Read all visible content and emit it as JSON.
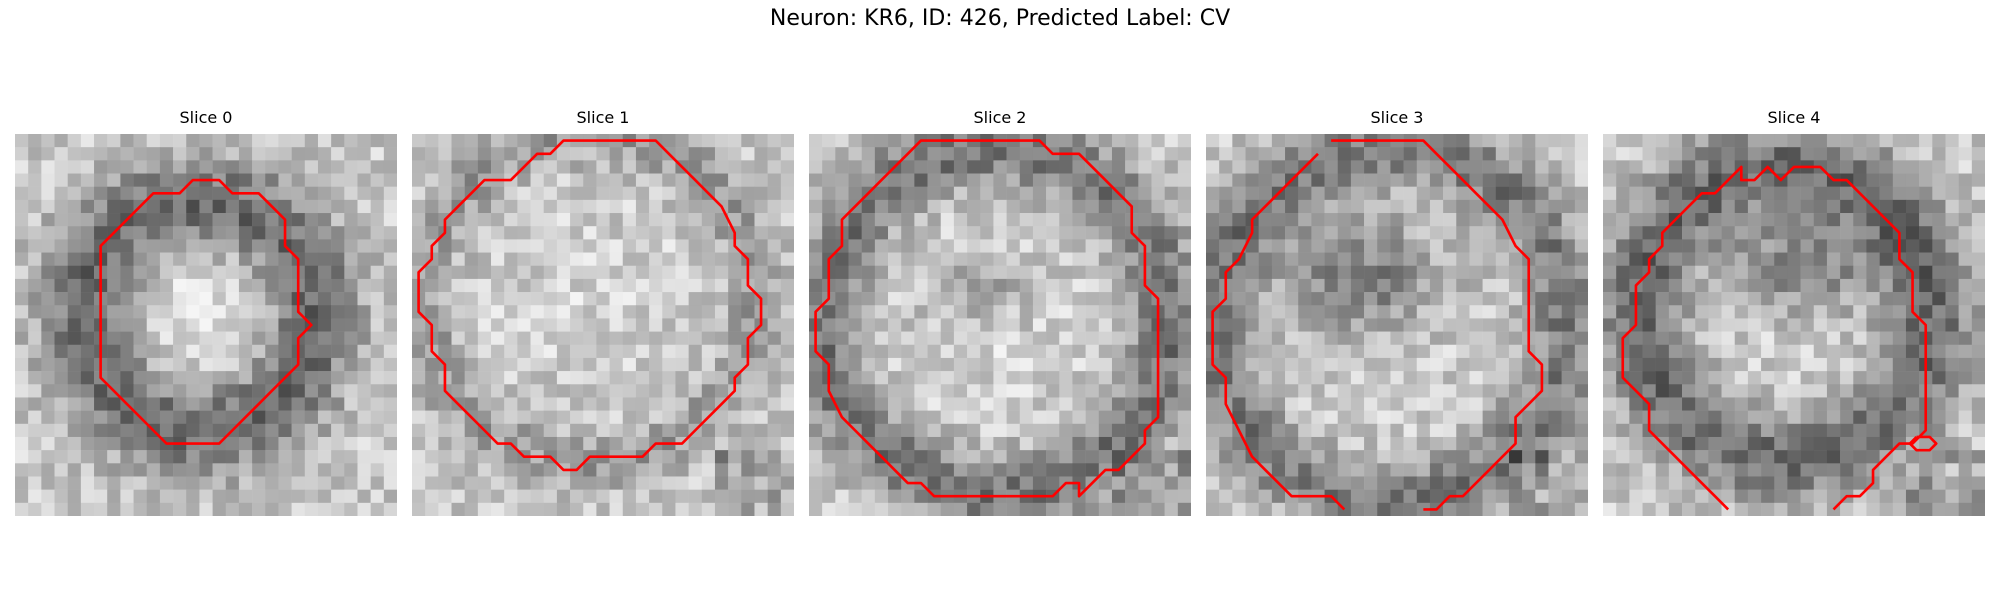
{
  "figure": {
    "title": "Neuron: KR6, ID: 426, Predicted Label: CV"
  },
  "contour_color": "#ff0000",
  "slices": [
    {
      "title": "Slice 0",
      "contour": [
        [
          13.5,
          3.5
        ],
        [
          15.5,
          3.5
        ],
        [
          16.5,
          4.5
        ],
        [
          18.5,
          4.5
        ],
        [
          19.5,
          5.5
        ],
        [
          20.5,
          6.5
        ],
        [
          20.5,
          8.5
        ],
        [
          21.5,
          9.5
        ],
        [
          21.5,
          13.5
        ],
        [
          22.5,
          14.5
        ],
        [
          21.5,
          15.5
        ],
        [
          21.5,
          17.5
        ],
        [
          20.5,
          18.5
        ],
        [
          19.5,
          19.5
        ],
        [
          18.5,
          20.5
        ],
        [
          17.5,
          21.5
        ],
        [
          16.5,
          22.5
        ],
        [
          15.5,
          23.5
        ],
        [
          11.5,
          23.5
        ],
        [
          10.5,
          22.5
        ],
        [
          9.5,
          21.5
        ],
        [
          8.5,
          20.5
        ],
        [
          7.5,
          19.5
        ],
        [
          6.5,
          18.5
        ],
        [
          6.5,
          8.5
        ],
        [
          7.5,
          7.5
        ],
        [
          8.5,
          6.5
        ],
        [
          9.5,
          5.5
        ],
        [
          10.5,
          4.5
        ],
        [
          12.5,
          4.5
        ]
      ]
    },
    {
      "title": "Slice 1",
      "contour": [
        [
          11.5,
          0.5
        ],
        [
          18.5,
          0.5
        ],
        [
          19.5,
          1.5
        ],
        [
          20.5,
          2.5
        ],
        [
          21.5,
          3.5
        ],
        [
          22.5,
          4.5
        ],
        [
          23.5,
          5.5
        ],
        [
          24.5,
          7.5
        ],
        [
          24.5,
          8.5
        ],
        [
          25.5,
          9.5
        ],
        [
          25.5,
          11.5
        ],
        [
          26.5,
          12.5
        ],
        [
          26.5,
          14.5
        ],
        [
          25.5,
          15.5
        ],
        [
          25.5,
          17.5
        ],
        [
          24.5,
          18.5
        ],
        [
          24.5,
          19.5
        ],
        [
          23.5,
          20.5
        ],
        [
          22.5,
          21.5
        ],
        [
          21.5,
          22.5
        ],
        [
          20.5,
          23.5
        ],
        [
          18.5,
          23.5
        ],
        [
          17.5,
          24.5
        ],
        [
          13.5,
          24.5
        ],
        [
          12.5,
          25.5
        ],
        [
          11.5,
          25.5
        ],
        [
          10.5,
          24.5
        ],
        [
          8.5,
          24.5
        ],
        [
          7.5,
          23.5
        ],
        [
          6.5,
          23.5
        ],
        [
          5.5,
          22.5
        ],
        [
          4.5,
          21.5
        ],
        [
          3.5,
          20.5
        ],
        [
          2.5,
          19.5
        ],
        [
          2.5,
          17.5
        ],
        [
          1.5,
          16.5
        ],
        [
          1.5,
          14.5
        ],
        [
          0.5,
          13.5
        ],
        [
          0.5,
          10.5
        ],
        [
          1.5,
          9.5
        ],
        [
          1.5,
          8.5
        ],
        [
          2.5,
          7.5
        ],
        [
          2.5,
          6.5
        ],
        [
          3.5,
          5.5
        ],
        [
          4.5,
          4.5
        ],
        [
          5.5,
          3.5
        ],
        [
          7.5,
          3.5
        ],
        [
          8.5,
          2.5
        ],
        [
          9.5,
          1.5
        ],
        [
          10.5,
          1.5
        ]
      ]
    },
    {
      "title": "Slice 2",
      "contour": [
        [
          8.5,
          0.5
        ],
        [
          17.5,
          0.5
        ],
        [
          18.5,
          1.5
        ],
        [
          20.5,
          1.5
        ],
        [
          21.5,
          2.5
        ],
        [
          22.5,
          3.5
        ],
        [
          23.5,
          4.5
        ],
        [
          24.5,
          5.5
        ],
        [
          24.5,
          7.5
        ],
        [
          25.5,
          8.5
        ],
        [
          25.5,
          11.5
        ],
        [
          26.5,
          12.5
        ],
        [
          26.5,
          21.5
        ],
        [
          25.5,
          22.5
        ],
        [
          25.5,
          23.5
        ],
        [
          24.5,
          24.5
        ],
        [
          23.5,
          25.5
        ],
        [
          22.5,
          25.5
        ],
        [
          21.5,
          26.5
        ],
        [
          20.5,
          27.5
        ],
        [
          20.5,
          26.5
        ],
        [
          19.5,
          26.5
        ],
        [
          18.5,
          27.5
        ],
        [
          9.5,
          27.5
        ],
        [
          8.5,
          26.5
        ],
        [
          7.5,
          26.5
        ],
        [
          6.5,
          25.5
        ],
        [
          5.5,
          24.5
        ],
        [
          4.5,
          23.5
        ],
        [
          3.5,
          22.5
        ],
        [
          2.5,
          21.5
        ],
        [
          1.5,
          19.5
        ],
        [
          1.5,
          17.5
        ],
        [
          0.5,
          16.5
        ],
        [
          0.5,
          13.5
        ],
        [
          1.5,
          12.5
        ],
        [
          1.5,
          9.5
        ],
        [
          2.5,
          8.5
        ],
        [
          2.5,
          6.5
        ],
        [
          3.5,
          5.5
        ],
        [
          4.5,
          4.5
        ],
        [
          5.5,
          3.5
        ],
        [
          6.5,
          2.5
        ],
        [
          7.5,
          1.5
        ]
      ]
    },
    {
      "title": "Slice 3",
      "contour": [
        [
          9.5,
          0.5
        ],
        [
          16.5,
          0.5
        ],
        [
          17.5,
          1.5
        ],
        [
          18.5,
          2.5
        ],
        [
          19.5,
          3.5
        ],
        [
          20.5,
          4.5
        ],
        [
          21.5,
          5.5
        ],
        [
          22.5,
          6.5
        ],
        [
          23.5,
          8.5
        ],
        [
          24.5,
          9.5
        ],
        [
          24.5,
          16.5
        ],
        [
          25.5,
          17.5
        ],
        [
          25.5,
          19.5
        ],
        [
          24.5,
          20.5
        ],
        [
          23.5,
          21.5
        ],
        [
          23.5,
          23.5
        ],
        [
          22.5,
          24.5
        ],
        [
          21.5,
          25.5
        ],
        [
          20.5,
          26.5
        ],
        [
          19.5,
          27.5
        ],
        [
          18.5,
          27.5
        ],
        [
          17.5,
          28.5
        ],
        [
          16.5,
          28.5
        ]
      ],
      "contour_b": [
        [
          10.5,
          28.5
        ],
        [
          9.5,
          27.5
        ],
        [
          6.5,
          27.5
        ],
        [
          5.5,
          26.5
        ],
        [
          4.5,
          25.5
        ],
        [
          3.5,
          24.5
        ],
        [
          2.5,
          22.5
        ],
        [
          1.5,
          20.5
        ],
        [
          1.5,
          18.5
        ],
        [
          0.5,
          17.5
        ],
        [
          0.5,
          13.5
        ],
        [
          1.5,
          12.5
        ],
        [
          1.5,
          10.5
        ],
        [
          2.5,
          9.5
        ],
        [
          3.5,
          7.5
        ],
        [
          3.5,
          6.5
        ],
        [
          4.5,
          5.5
        ],
        [
          5.5,
          4.5
        ],
        [
          6.5,
          3.5
        ],
        [
          7.5,
          2.5
        ],
        [
          8.5,
          1.5
        ]
      ]
    },
    {
      "title": "Slice 4",
      "contour": [
        [
          9.5,
          28.5
        ],
        [
          8.5,
          27.5
        ],
        [
          7.5,
          26.5
        ],
        [
          6.5,
          25.5
        ],
        [
          5.5,
          24.5
        ],
        [
          4.5,
          23.5
        ],
        [
          3.5,
          22.5
        ],
        [
          3.5,
          20.5
        ],
        [
          2.5,
          19.5
        ],
        [
          1.5,
          18.5
        ],
        [
          1.5,
          15.5
        ],
        [
          2.5,
          14.5
        ],
        [
          2.5,
          11.5
        ],
        [
          3.5,
          10.5
        ],
        [
          3.5,
          9.5
        ],
        [
          4.5,
          8.5
        ],
        [
          4.5,
          7.5
        ],
        [
          5.5,
          6.5
        ],
        [
          6.5,
          5.5
        ],
        [
          7.5,
          4.5
        ],
        [
          8.5,
          4.5
        ],
        [
          9.5,
          3.5
        ],
        [
          10.5,
          2.5
        ],
        [
          10.5,
          3.5
        ],
        [
          11.5,
          3.5
        ],
        [
          12.5,
          2.5
        ],
        [
          13.5,
          3.5
        ],
        [
          14.5,
          2.5
        ],
        [
          16.5,
          2.5
        ],
        [
          17.5,
          3.5
        ],
        [
          18.5,
          3.5
        ],
        [
          19.5,
          4.5
        ],
        [
          20.5,
          5.5
        ],
        [
          21.5,
          6.5
        ],
        [
          22.5,
          7.5
        ],
        [
          22.5,
          9.5
        ],
        [
          23.5,
          10.5
        ],
        [
          23.5,
          13.5
        ],
        [
          24.5,
          14.5
        ],
        [
          24.5,
          22.5
        ],
        [
          23.5,
          23.5
        ],
        [
          22.5,
          23.5
        ],
        [
          21.5,
          24.5
        ],
        [
          20.5,
          25.5
        ],
        [
          20.5,
          26.5
        ],
        [
          19.5,
          27.5
        ],
        [
          18.5,
          27.5
        ],
        [
          17.5,
          28.5
        ]
      ],
      "loop": [
        [
          23.8,
          23.0
        ],
        [
          24.8,
          23.0
        ],
        [
          25.3,
          23.5
        ],
        [
          24.8,
          24.0
        ],
        [
          23.8,
          24.0
        ],
        [
          23.3,
          23.5
        ],
        [
          23.8,
          23.0
        ]
      ]
    }
  ]
}
